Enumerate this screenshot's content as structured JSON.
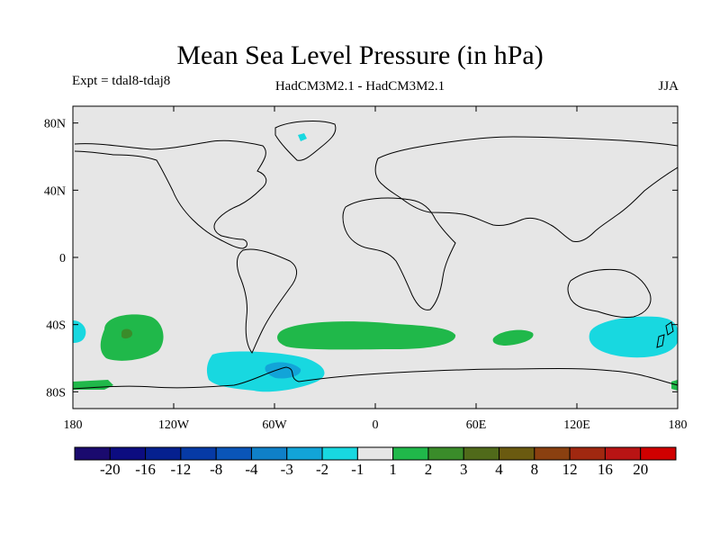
{
  "chart_data": {
    "type": "map",
    "title": "Mean Sea Level Pressure (in hPa)",
    "experiment_label": "Expt = tdal8-tdaj8",
    "model_label": "HadCM3M2.1 - HadCM3M2.1",
    "season": "JJA",
    "x_ticks": [
      "180",
      "120W",
      "60W",
      "0",
      "60E",
      "120E",
      "180"
    ],
    "y_ticks": [
      "80N",
      "40N",
      "0",
      "40S",
      "80S"
    ],
    "xlim": [
      -180,
      180
    ],
    "ylim": [
      -90,
      90
    ],
    "colorbar": {
      "labels": [
        "-20",
        "-16",
        "-12",
        "-8",
        "-4",
        "-3",
        "-2",
        "-1",
        "1",
        "2",
        "3",
        "4",
        "8",
        "12",
        "16",
        "20"
      ],
      "colors": [
        "#1a0a6e",
        "#0c0c80",
        "#05208f",
        "#063aa5",
        "#0a55b8",
        "#0f80c8",
        "#12a4d8",
        "#18d8e0",
        "#e6e6e6",
        "#20b84a",
        "#3a8c2a",
        "#506a1a",
        "#6a5a10",
        "#8a4010",
        "#a02810",
        "#b81414",
        "#d00000"
      ]
    },
    "regions": [
      {
        "sign": "positive",
        "class": "1 to 2",
        "lon": [
          -162,
          -138
        ],
        "lat": [
          -50,
          -36
        ]
      },
      {
        "sign": "positive",
        "class": "2 to 3",
        "lon": [
          -154,
          -148
        ],
        "lat": [
          -46,
          -42
        ]
      },
      {
        "sign": "positive",
        "class": "1 to 2",
        "lon": [
          -60,
          100
        ],
        "lat": [
          -55,
          -38
        ]
      },
      {
        "sign": "positive",
        "class": "1 to 2",
        "lon": [
          -180,
          -160
        ],
        "lat": [
          -80,
          -75
        ]
      },
      {
        "sign": "positive",
        "class": "1 to 2",
        "lon": [
          178,
          180
        ],
        "lat": [
          -78,
          -74
        ]
      },
      {
        "sign": "negative",
        "class": "-2 to -1",
        "lon": [
          -100,
          -30
        ],
        "lat": [
          -82,
          -55
        ]
      },
      {
        "sign": "negative",
        "class": "-3 to -2",
        "lon": [
          -74,
          -55
        ],
        "lat": [
          -74,
          -65
        ]
      },
      {
        "sign": "negative",
        "class": "-2 to -1",
        "lon": [
          130,
          180
        ],
        "lat": [
          -60,
          -36
        ]
      },
      {
        "sign": "negative",
        "class": "-2 to -1",
        "lon": [
          -180,
          -172
        ],
        "lat": [
          -48,
          -36
        ]
      },
      {
        "sign": "negative",
        "class": "-2 to -1",
        "lon": [
          -48,
          -42
        ],
        "lat": [
          70,
          74
        ]
      }
    ]
  }
}
